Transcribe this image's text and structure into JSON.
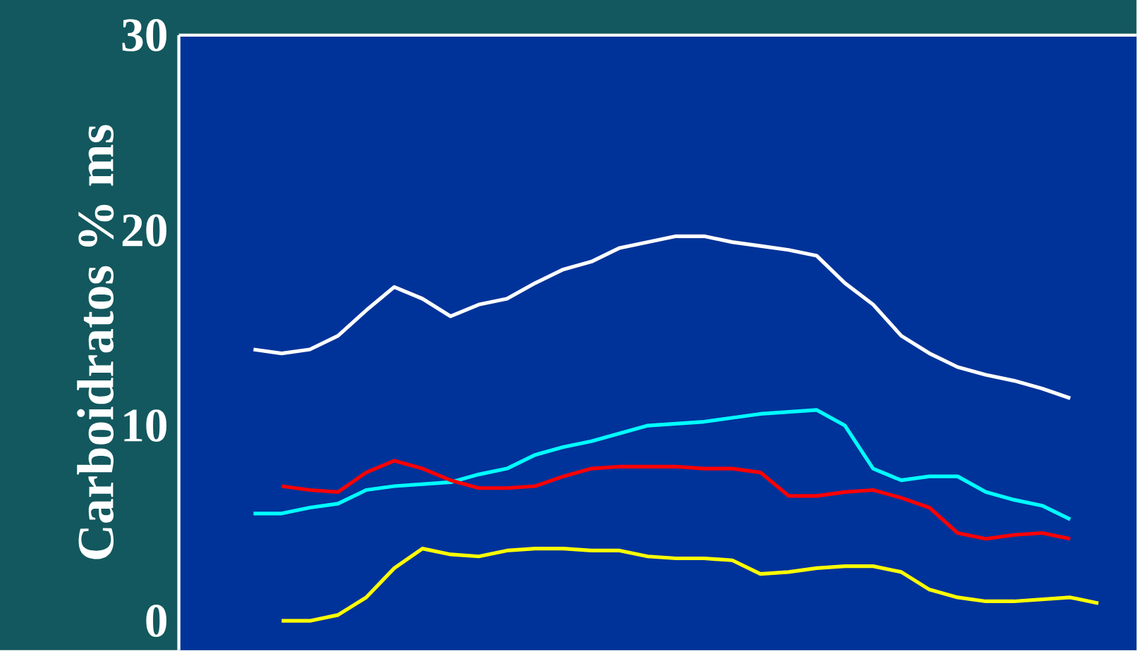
{
  "chart_data": {
    "type": "line",
    "ylabel": "Carboidratos % ms",
    "categories": [
      null,
      null,
      null,
      null,
      null,
      null,
      null,
      null,
      null,
      null,
      null,
      null,
      null,
      null,
      null,
      null,
      null,
      null,
      null,
      null,
      null,
      null,
      null,
      null,
      null,
      null,
      null,
      null,
      null,
      null,
      null
    ],
    "ylim": [
      -1.5,
      30
    ],
    "yticks": [
      0,
      10,
      20,
      30
    ],
    "grid": false,
    "marker": "none",
    "line_style": "solid",
    "series": [
      {
        "color": "#ffffff",
        "values": [
          13.9,
          13.7,
          13.9,
          14.6,
          15.9,
          17.1,
          16.5,
          15.6,
          16.2,
          16.5,
          17.3,
          18.0,
          18.4,
          19.1,
          19.4,
          19.7,
          19.7,
          19.4,
          19.2,
          19.0,
          18.7,
          17.3,
          16.2,
          14.6,
          13.7,
          13.0,
          12.6,
          12.3,
          11.9,
          11.4,
          null
        ]
      },
      {
        "color": "#00ffff",
        "values": [
          5.5,
          5.5,
          5.8,
          6.0,
          6.7,
          6.9,
          7.0,
          7.1,
          7.5,
          7.8,
          8.5,
          8.9,
          9.2,
          9.6,
          10.0,
          10.1,
          10.2,
          10.4,
          10.6,
          10.7,
          10.8,
          10.0,
          7.8,
          7.2,
          7.4,
          7.4,
          6.6,
          6.2,
          5.9,
          5.2,
          null
        ]
      },
      {
        "color": "#ff0000",
        "values": [
          null,
          6.9,
          6.7,
          6.6,
          7.6,
          8.2,
          7.8,
          7.2,
          6.8,
          6.8,
          6.9,
          7.4,
          7.8,
          7.9,
          7.9,
          7.9,
          7.8,
          7.8,
          7.6,
          6.4,
          6.4,
          6.6,
          6.7,
          6.3,
          5.8,
          4.5,
          4.2,
          4.4,
          4.5,
          4.2,
          null
        ]
      },
      {
        "color": "#ffff00",
        "values": [
          null,
          0.0,
          0.0,
          0.3,
          1.2,
          2.7,
          3.7,
          3.4,
          3.3,
          3.6,
          3.7,
          3.7,
          3.6,
          3.6,
          3.3,
          3.2,
          3.2,
          3.1,
          2.4,
          2.5,
          2.7,
          2.8,
          2.8,
          2.5,
          1.6,
          1.2,
          1.0,
          1.0,
          1.1,
          1.2,
          0.9
        ]
      }
    ]
  }
}
